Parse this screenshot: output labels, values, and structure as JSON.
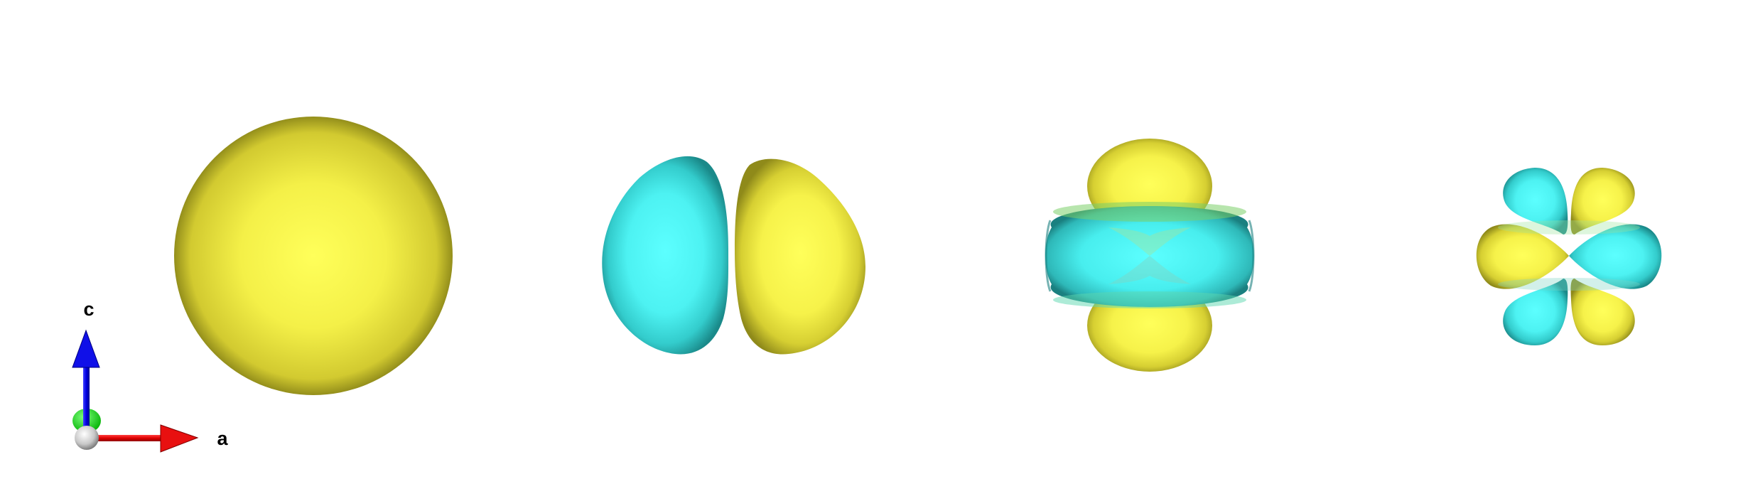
{
  "colors": {
    "positive_lobe": "#ffff55",
    "negative_lobe": "#55ffff",
    "axis_a": "#e00000",
    "axis_c": "#0000e0",
    "axis_b_hidden": "#00dd00",
    "origin": "#c8c8c8",
    "background": "#ffffff"
  },
  "axes": {
    "a_label": "a",
    "c_label": "c"
  },
  "orbitals": [
    {
      "name": "s-orbital",
      "lobes": [
        "positive"
      ]
    },
    {
      "name": "p-orbital",
      "lobes": [
        "negative",
        "positive"
      ]
    },
    {
      "name": "dz2-orbital",
      "lobes": [
        "positive",
        "negative",
        "positive"
      ]
    },
    {
      "name": "d-orbital",
      "lobes": [
        "negative",
        "positive",
        "positive",
        "negative",
        "negative",
        "positive"
      ]
    }
  ]
}
